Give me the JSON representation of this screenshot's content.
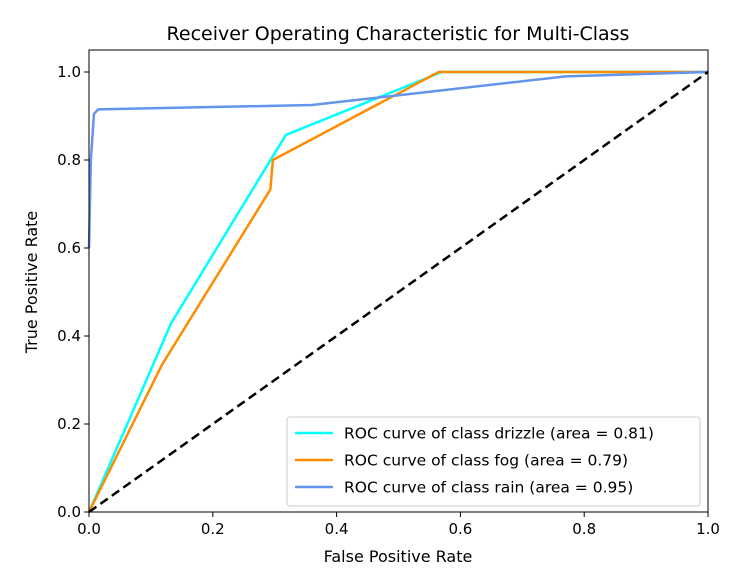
{
  "chart_data": {
    "type": "line",
    "title": "Receiver Operating Characteristic for Multi-Class",
    "xlabel": "False Positive Rate",
    "ylabel": "True Positive Rate",
    "xlim": [
      0.0,
      1.0
    ],
    "ylim": [
      0.0,
      1.05
    ],
    "xticks": [
      "0.0",
      "0.2",
      "0.4",
      "0.6",
      "0.8",
      "1.0"
    ],
    "yticks": [
      "0.0",
      "0.2",
      "0.4",
      "0.6",
      "0.8",
      "1.0"
    ],
    "grid": false,
    "legend_position": "lower-right",
    "series": [
      {
        "name": "ROC curve of class drizzle (area = 0.81)",
        "color": "#00ffff",
        "x": [
          0.0,
          0.133,
          0.318,
          0.57,
          1.0
        ],
        "y": [
          0.0,
          0.43,
          0.857,
          1.0,
          1.0
        ]
      },
      {
        "name": "ROC curve of class fog (area = 0.79)",
        "color": "#ff8c00",
        "x": [
          0.0,
          0.118,
          0.293,
          0.297,
          0.565,
          1.0
        ],
        "y": [
          0.0,
          0.335,
          0.733,
          0.8,
          1.0,
          1.0
        ]
      },
      {
        "name": "ROC curve of class rain (area = 0.95)",
        "color": "#6495ed",
        "x": [
          0.0,
          0.003,
          0.008,
          0.015,
          0.36,
          0.77,
          1.0
        ],
        "y": [
          0.6,
          0.8,
          0.905,
          0.915,
          0.925,
          0.99,
          1.0
        ]
      }
    ],
    "diagonal": {
      "color": "#000000",
      "style": "dashed",
      "x": [
        0.0,
        1.0
      ],
      "y": [
        0.0,
        1.0
      ]
    }
  }
}
